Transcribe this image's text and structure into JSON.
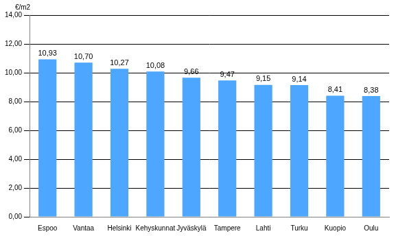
{
  "chart_data": {
    "type": "bar",
    "ylabel": "€/m2",
    "categories": [
      "Espoo",
      "Vantaa",
      "Helsinki",
      "Kehyskunnat",
      "Jyväskylä",
      "Tampere",
      "Lahti",
      "Turku",
      "Kuopio",
      "Oulu"
    ],
    "values": [
      10.93,
      10.7,
      10.27,
      10.08,
      9.66,
      9.47,
      9.15,
      9.14,
      8.41,
      8.38
    ],
    "value_labels": [
      "10,93",
      "10,70",
      "10,27",
      "10,08",
      "9,66",
      "9,47",
      "9,15",
      "9,14",
      "8,41",
      "8,38"
    ],
    "data_labels": true,
    "color": "#4da6ff",
    "ylim": [
      0,
      14
    ],
    "yticks": [
      {
        "value": 0,
        "label": "0,00"
      },
      {
        "value": 2,
        "label": "2,00"
      },
      {
        "value": 4,
        "label": "4,00"
      },
      {
        "value": 6,
        "label": "6,00"
      },
      {
        "value": 8,
        "label": "8,00"
      },
      {
        "value": 10,
        "label": "10,00"
      },
      {
        "value": 12,
        "label": "12,00"
      },
      {
        "value": 14,
        "label": "14,00"
      }
    ],
    "grid": true
  }
}
